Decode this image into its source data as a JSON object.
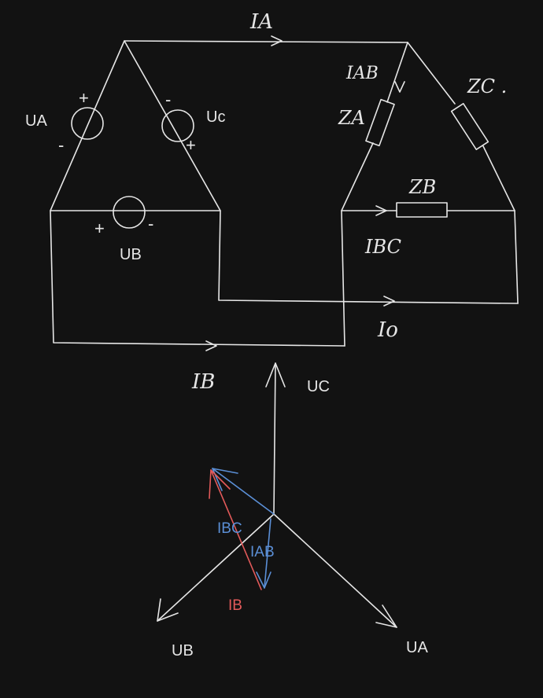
{
  "colors": {
    "background": "#121212",
    "stroke": "#e6e6e6",
    "blue": "#5b8fd6",
    "red": "#e35a5a"
  },
  "circuit": {
    "sources": {
      "ua_label": "UA",
      "uc_label": "Uc",
      "ub_label": "UB",
      "plus": "+",
      "minus": "-"
    },
    "currents": {
      "ia": "IA",
      "iab": "IAB",
      "ibc": "IBC",
      "io": "Io",
      "ib": "IB"
    },
    "loads": {
      "za": "ZA",
      "zb": "ZB",
      "zc": "ZC ."
    }
  },
  "phasor": {
    "uc": "UC",
    "ub": "UB",
    "ua": "UA",
    "ibc": "IBC",
    "iab": "IAB",
    "ib": "IB"
  }
}
